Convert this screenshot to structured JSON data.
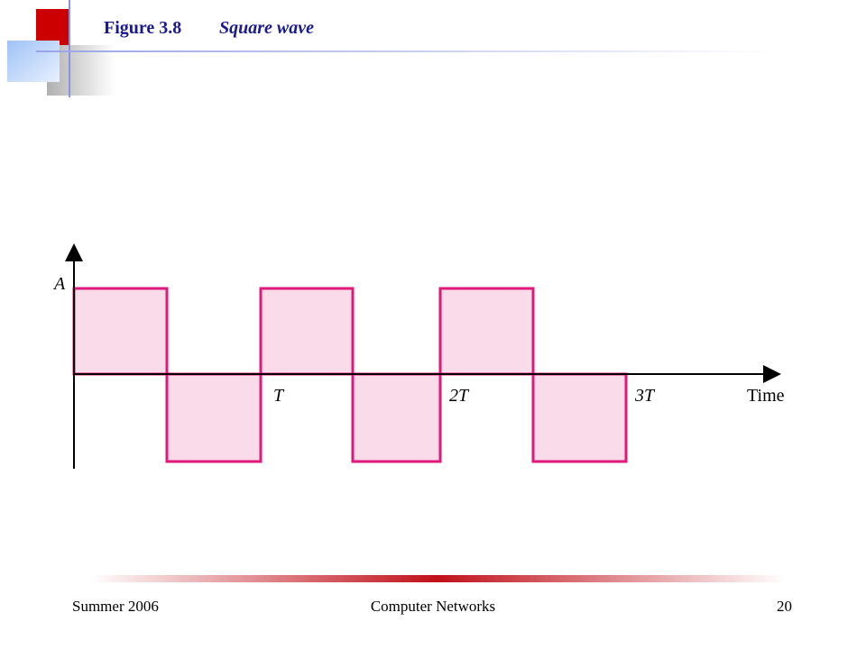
{
  "header": {
    "figure": "Figure 3.8",
    "caption": "Square wave"
  },
  "diagram": {
    "amplitude_label": "A",
    "period_labels": [
      "T",
      "2T",
      "3T"
    ],
    "time_label": "Time"
  },
  "footer": {
    "left": "Summer 2006",
    "center": "Computer Networks",
    "page": "20"
  }
}
